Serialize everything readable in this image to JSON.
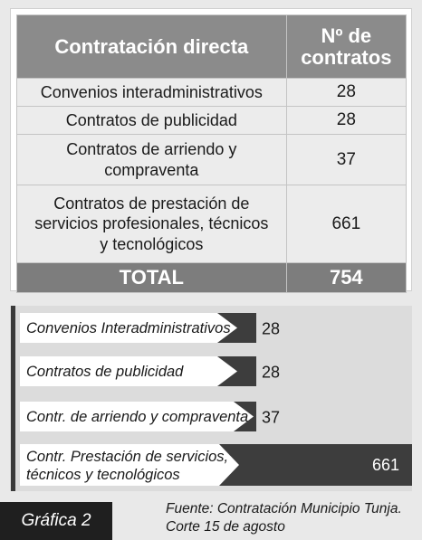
{
  "table": {
    "headers": [
      "Contratación directa",
      "Nº de contratos"
    ],
    "rows": [
      {
        "label": "Convenios interadministrativos",
        "value": "28"
      },
      {
        "label": "Contratos de publicidad",
        "value": "28"
      },
      {
        "label": "Contratos de arriendo y compraventa",
        "value": "37"
      },
      {
        "label": "Contratos de prestación de servicios profesionales, técnicos y tecnológicos",
        "value": "661"
      }
    ],
    "total": {
      "label": "TOTAL",
      "value": "754"
    }
  },
  "chart_data": {
    "type": "bar",
    "orientation": "horizontal",
    "categories": [
      "Convenios Interadministrativos",
      "Contratos de publicidad",
      "Contr. de arriendo y compraventa",
      "Contr. Prestación de servicios, técnicos y tecnológicos"
    ],
    "values": [
      28,
      28,
      37,
      661
    ],
    "title": "",
    "xlabel": "",
    "ylabel": "",
    "grid": false,
    "colors": {
      "bar": "#3d3d3d",
      "label_box": "#ffffff"
    }
  },
  "footer": {
    "badge": "Gráfica 2",
    "source_line1": "Fuente: Contratación Municipio Tunja.",
    "source_line2": "Corte 15 de agosto"
  }
}
